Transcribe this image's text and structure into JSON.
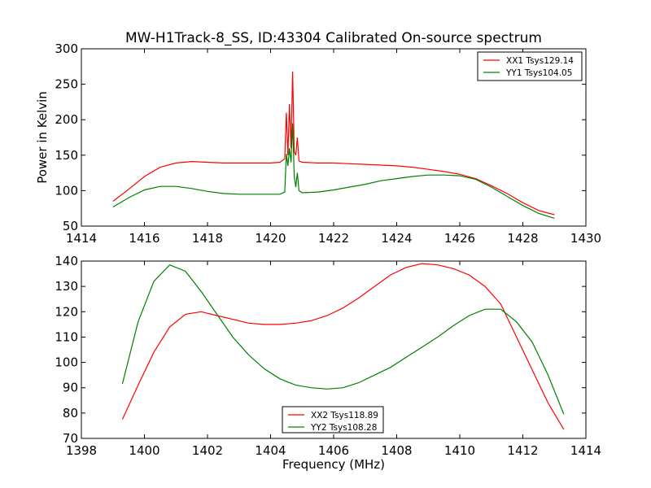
{
  "figure": {
    "title": "MW-H1Track-8_SS, ID:43304 Calibrated On-source spectrum",
    "ylabel": "Power in Kelvin",
    "xlabel": "Frequency (MHz)"
  },
  "chart_data": [
    {
      "type": "line",
      "xlim": [
        1414,
        1430
      ],
      "ylim": [
        50,
        300
      ],
      "xticks": [
        "1414",
        "1416",
        "1418",
        "1420",
        "1422",
        "1424",
        "1426",
        "1428",
        "1430"
      ],
      "yticks": [
        "50",
        "100",
        "150",
        "200",
        "250",
        "300"
      ],
      "legend_position": "top-right",
      "series": [
        {
          "name": "XX1 Tsys129.14",
          "color": "#ff0000",
          "x": [
            1415.0,
            1415.5,
            1416.0,
            1416.5,
            1417.0,
            1417.5,
            1418.0,
            1418.5,
            1419.0,
            1419.5,
            1420.0,
            1420.3,
            1420.45,
            1420.5,
            1420.55,
            1420.6,
            1420.65,
            1420.7,
            1420.75,
            1420.8,
            1420.85,
            1420.9,
            1421.0,
            1421.5,
            1422.0,
            1422.5,
            1423.0,
            1423.5,
            1424.0,
            1424.5,
            1425.0,
            1425.5,
            1426.0,
            1426.5,
            1427.0,
            1427.5,
            1428.0,
            1428.5,
            1429.0
          ],
          "y": [
            85,
            102,
            120,
            133,
            139,
            141,
            140,
            139,
            139,
            139,
            139,
            140,
            145,
            210,
            150,
            222,
            160,
            268,
            155,
            150,
            175,
            142,
            140,
            139,
            139,
            138,
            137,
            136,
            135,
            133,
            130,
            127,
            123,
            117,
            107,
            96,
            83,
            72,
            66
          ]
        },
        {
          "name": "YY1 Tsys104.05",
          "color": "#008000",
          "x": [
            1415.0,
            1415.5,
            1416.0,
            1416.5,
            1417.0,
            1417.5,
            1418.0,
            1418.5,
            1419.0,
            1419.5,
            1420.0,
            1420.3,
            1420.45,
            1420.5,
            1420.55,
            1420.6,
            1420.65,
            1420.7,
            1420.75,
            1420.8,
            1420.85,
            1420.9,
            1421.0,
            1421.5,
            1422.0,
            1422.5,
            1423.0,
            1423.5,
            1424.0,
            1424.5,
            1425.0,
            1425.5,
            1426.0,
            1426.5,
            1427.0,
            1427.5,
            1428.0,
            1428.5,
            1429.0
          ],
          "y": [
            77,
            90,
            101,
            106,
            106,
            103,
            99,
            96,
            95,
            95,
            95,
            95,
            98,
            152,
            135,
            160,
            140,
            195,
            120,
            105,
            125,
            100,
            97,
            98,
            101,
            105,
            109,
            114,
            117,
            120,
            122,
            122,
            121,
            116,
            105,
            92,
            79,
            68,
            61
          ]
        }
      ]
    },
    {
      "type": "line",
      "xlim": [
        1398,
        1414
      ],
      "ylim": [
        70,
        140
      ],
      "xticks": [
        "1398",
        "1400",
        "1402",
        "1404",
        "1406",
        "1408",
        "1410",
        "1412",
        "1414"
      ],
      "yticks": [
        "70",
        "80",
        "90",
        "100",
        "110",
        "120",
        "130",
        "140"
      ],
      "legend_position": "lower-center",
      "series": [
        {
          "name": "XX2 Tsys118.89",
          "color": "#ff0000",
          "x": [
            1399.3,
            1399.8,
            1400.3,
            1400.8,
            1401.3,
            1401.8,
            1402.3,
            1402.8,
            1403.3,
            1403.8,
            1404.3,
            1404.8,
            1405.3,
            1405.8,
            1406.3,
            1406.8,
            1407.3,
            1407.8,
            1408.3,
            1408.8,
            1409.3,
            1409.8,
            1410.3,
            1410.8,
            1411.3,
            1411.8,
            1412.3,
            1412.8,
            1413.3
          ],
          "y": [
            77.5,
            91,
            104,
            114,
            119,
            120,
            118.5,
            117,
            115.5,
            115,
            115,
            115.5,
            116.5,
            118.5,
            121.5,
            125.5,
            130,
            134.5,
            137.5,
            139,
            138.5,
            137,
            134.5,
            130,
            123,
            110,
            97,
            84,
            73.5
          ]
        },
        {
          "name": "YY2 Tsys108.28",
          "color": "#008000",
          "x": [
            1399.3,
            1399.8,
            1400.3,
            1400.8,
            1401.3,
            1401.8,
            1402.3,
            1402.8,
            1403.3,
            1403.8,
            1404.3,
            1404.8,
            1405.3,
            1405.8,
            1406.3,
            1406.8,
            1407.3,
            1407.8,
            1408.3,
            1408.8,
            1409.3,
            1409.8,
            1410.3,
            1410.8,
            1411.3,
            1411.8,
            1412.3,
            1412.8,
            1413.3
          ],
          "y": [
            91.5,
            116,
            132,
            138.5,
            136,
            128,
            119,
            110,
            103,
            97.5,
            93.5,
            91,
            90,
            89.5,
            90,
            92,
            95,
            98,
            102,
            106,
            110,
            114.5,
            118.5,
            121,
            121,
            116,
            108,
            95,
            79.5
          ]
        }
      ]
    }
  ]
}
